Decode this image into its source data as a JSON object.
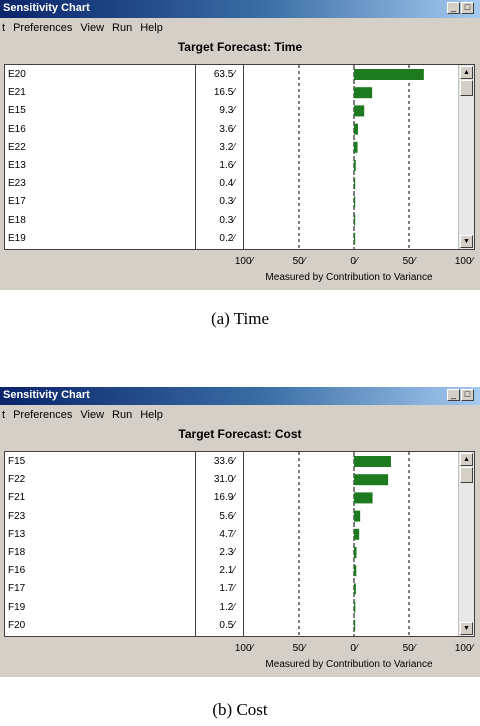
{
  "panels": [
    {
      "window_title": "Sensitivity Chart",
      "menu": [
        "t",
        "Preferences",
        "View",
        "Run",
        "Help"
      ],
      "forecast_title": "Target Forecast:  Time",
      "rows": [
        {
          "name": "E20",
          "value": "63.5⁄",
          "pct": 63.5
        },
        {
          "name": "E21",
          "value": "16.5⁄",
          "pct": 16.5
        },
        {
          "name": "E15",
          "value": "9.3⁄",
          "pct": 9.3
        },
        {
          "name": "E16",
          "value": "3.6⁄",
          "pct": 3.6
        },
        {
          "name": "E22",
          "value": "3.2⁄",
          "pct": 3.2
        },
        {
          "name": "E13",
          "value": "1.6⁄",
          "pct": 1.6
        },
        {
          "name": "E23",
          "value": "0.4⁄",
          "pct": 0.4
        },
        {
          "name": "E17",
          "value": "0.3⁄",
          "pct": 0.3
        },
        {
          "name": "E18",
          "value": "0.3⁄",
          "pct": 0.3
        },
        {
          "name": "E19",
          "value": "0.2⁄",
          "pct": 0.2
        }
      ],
      "axis_ticks": [
        "100⁄",
        "50⁄",
        "0⁄",
        "50⁄",
        "100⁄"
      ],
      "axis_label": "Measured by Contribution to Variance",
      "caption": "(a) Time"
    },
    {
      "window_title": "Sensitivity Chart",
      "menu": [
        "t",
        "Preferences",
        "View",
        "Run",
        "Help"
      ],
      "forecast_title": "Target Forecast:  Cost",
      "rows": [
        {
          "name": "F15",
          "value": "33.6⁄",
          "pct": 33.6
        },
        {
          "name": "F22",
          "value": "31.0⁄",
          "pct": 31.0
        },
        {
          "name": "F21",
          "value": "16.9⁄",
          "pct": 16.9
        },
        {
          "name": "F23",
          "value": "5.6⁄",
          "pct": 5.6
        },
        {
          "name": "F13",
          "value": "4.7⁄",
          "pct": 4.7
        },
        {
          "name": "F18",
          "value": "2.3⁄",
          "pct": 2.3
        },
        {
          "name": "F16",
          "value": "2.1⁄",
          "pct": 2.1
        },
        {
          "name": "F17",
          "value": "1.7⁄",
          "pct": 1.7
        },
        {
          "name": "F19",
          "value": "1.2⁄",
          "pct": 1.2
        },
        {
          "name": "F20",
          "value": "0.5⁄",
          "pct": 0.5
        }
      ],
      "axis_ticks": [
        "100⁄",
        "50⁄",
        "0⁄",
        "50⁄",
        "100⁄"
      ],
      "axis_label": "Measured by Contribution to Variance",
      "caption": "(b) Cost"
    }
  ],
  "bar_color": "#1e7a1e",
  "chart_data": [
    {
      "type": "bar",
      "title": "Target Forecast:  Time",
      "categories": [
        "E20",
        "E21",
        "E15",
        "E16",
        "E22",
        "E13",
        "E23",
        "E17",
        "E18",
        "E19"
      ],
      "values": [
        63.5,
        16.5,
        9.3,
        3.6,
        3.2,
        1.6,
        0.4,
        0.3,
        0.3,
        0.2
      ],
      "xlabel": "Measured by Contribution to Variance",
      "xlim": [
        -100,
        100
      ]
    },
    {
      "type": "bar",
      "title": "Target Forecast:  Cost",
      "categories": [
        "F15",
        "F22",
        "F21",
        "F23",
        "F13",
        "F18",
        "F16",
        "F17",
        "F19",
        "F20"
      ],
      "values": [
        33.6,
        31.0,
        16.9,
        5.6,
        4.7,
        2.3,
        2.1,
        1.7,
        1.2,
        0.5
      ],
      "xlabel": "Measured by Contribution to Variance",
      "xlim": [
        -100,
        100
      ]
    }
  ]
}
